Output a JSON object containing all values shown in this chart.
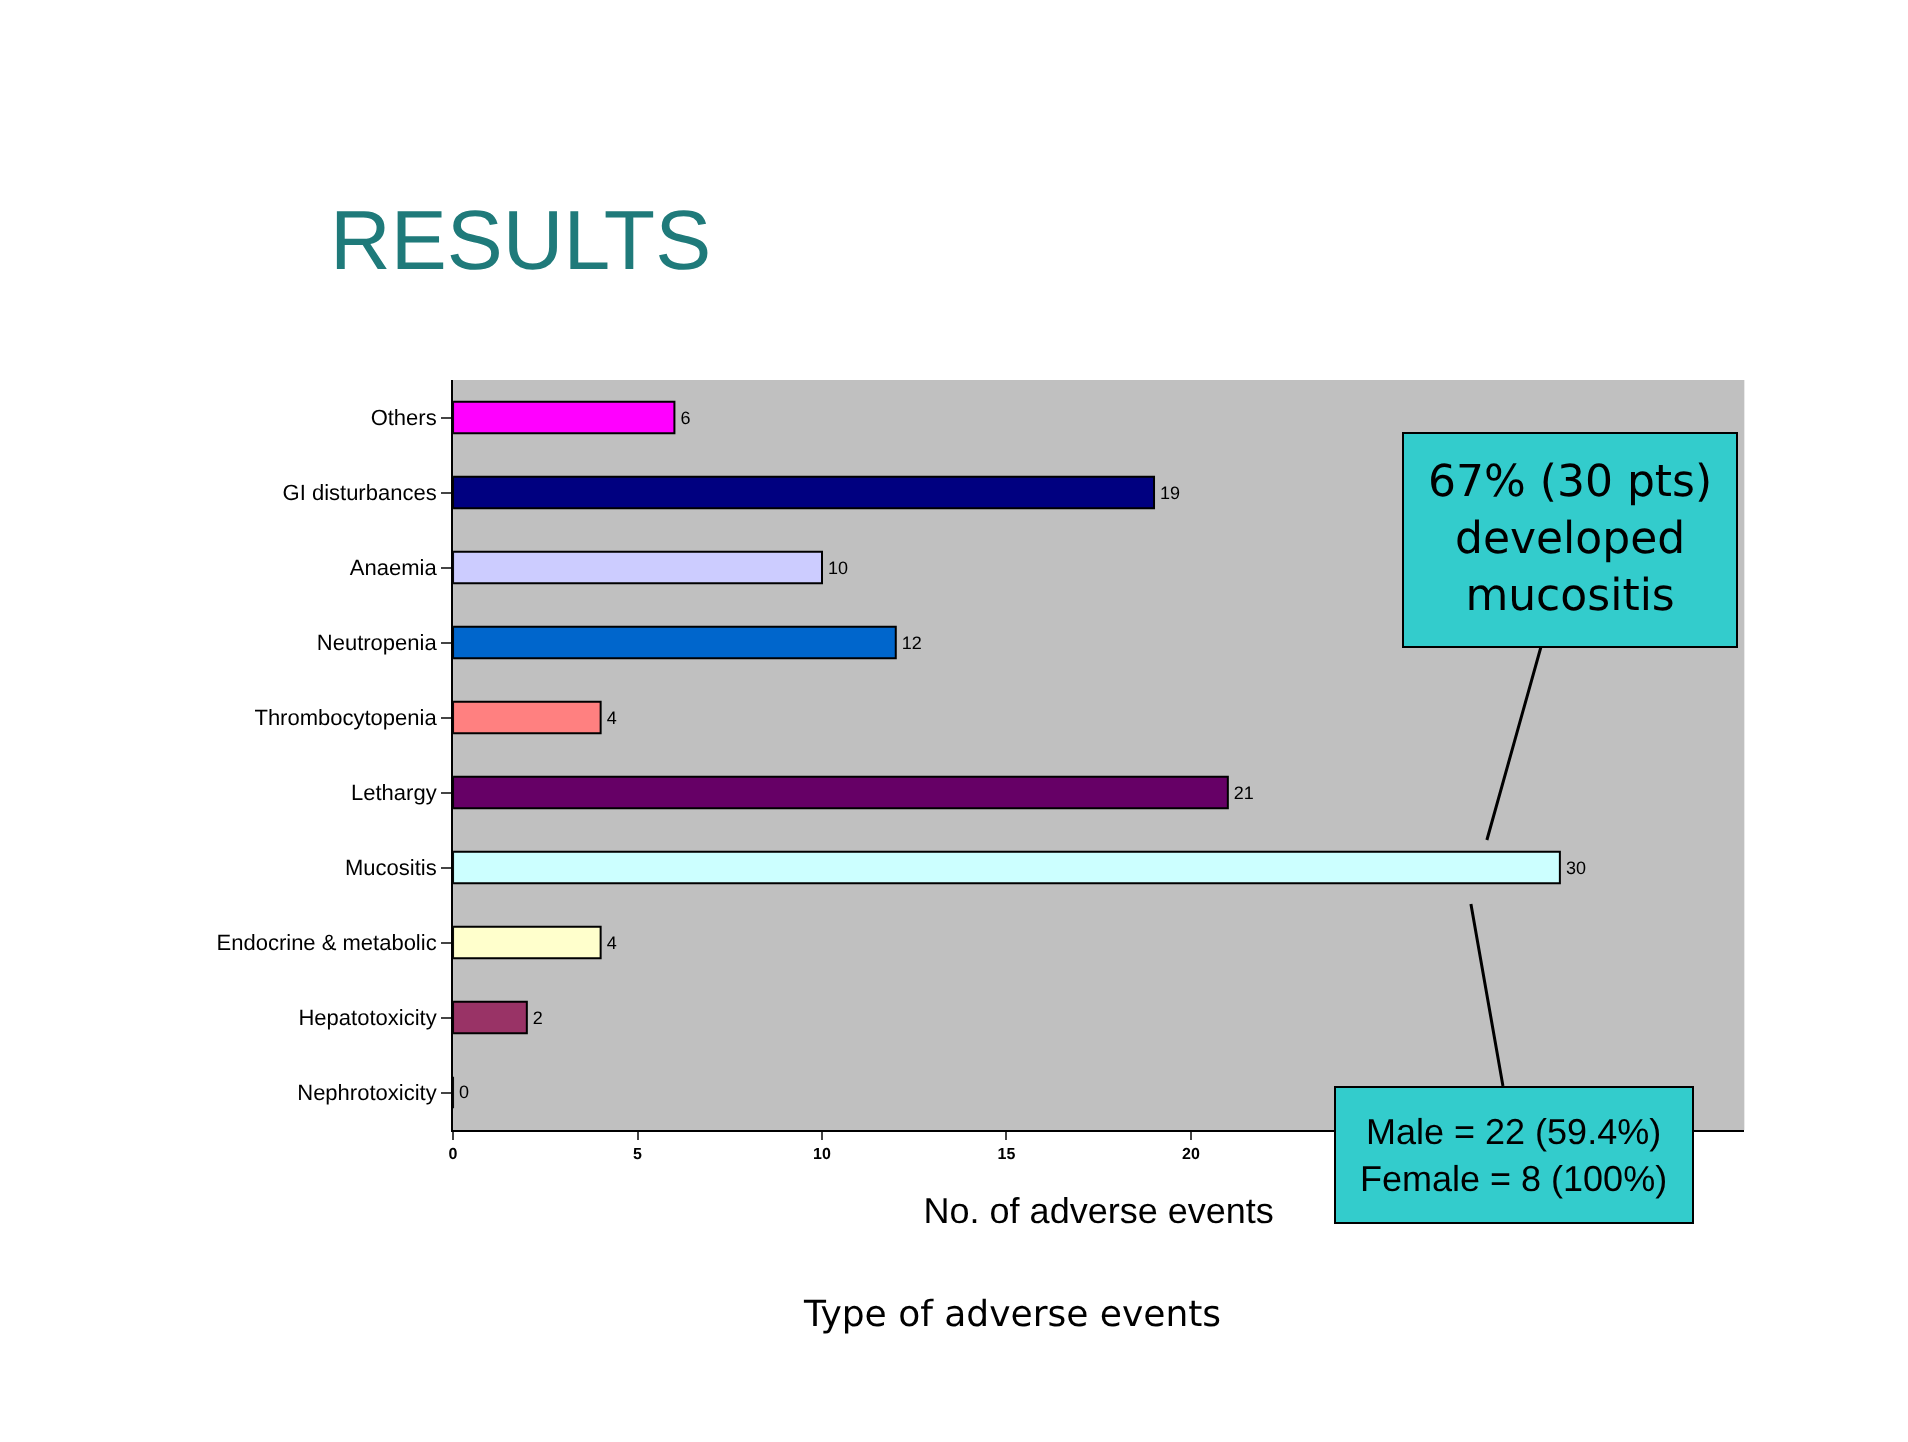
{
  "chart_data": {
    "type": "bar",
    "orientation": "horizontal",
    "title": "RESULTS",
    "xlabel": "No. of adverse events",
    "categories": [
      "Others",
      "GI disturbances",
      "Anaemia",
      "Neutropenia",
      "Thrombocytopenia",
      "Lethargy",
      "Mucositis",
      "Endocrine & metabolic",
      "Hepatotoxicity",
      "Nephrotoxicity"
    ],
    "values": [
      6,
      19,
      10,
      12,
      4,
      21,
      30,
      4,
      2,
      0
    ],
    "colors": [
      "#ff00ff",
      "#000080",
      "#ccccff",
      "#0066cc",
      "#ff8080",
      "#660066",
      "#ccffff",
      "#ffffcc",
      "#993366",
      "#c0c0c0"
    ],
    "xlim": [
      0,
      35
    ],
    "xticks": [
      0,
      5,
      10,
      15,
      20
    ],
    "grid": false,
    "data_labels": true,
    "annotations": [
      "67% (30 pts)\ndeveloped\nmucositis",
      "Male = 22 (59.4%)\nFemale = 8 (100%)",
      "Type of adverse events"
    ]
  }
}
